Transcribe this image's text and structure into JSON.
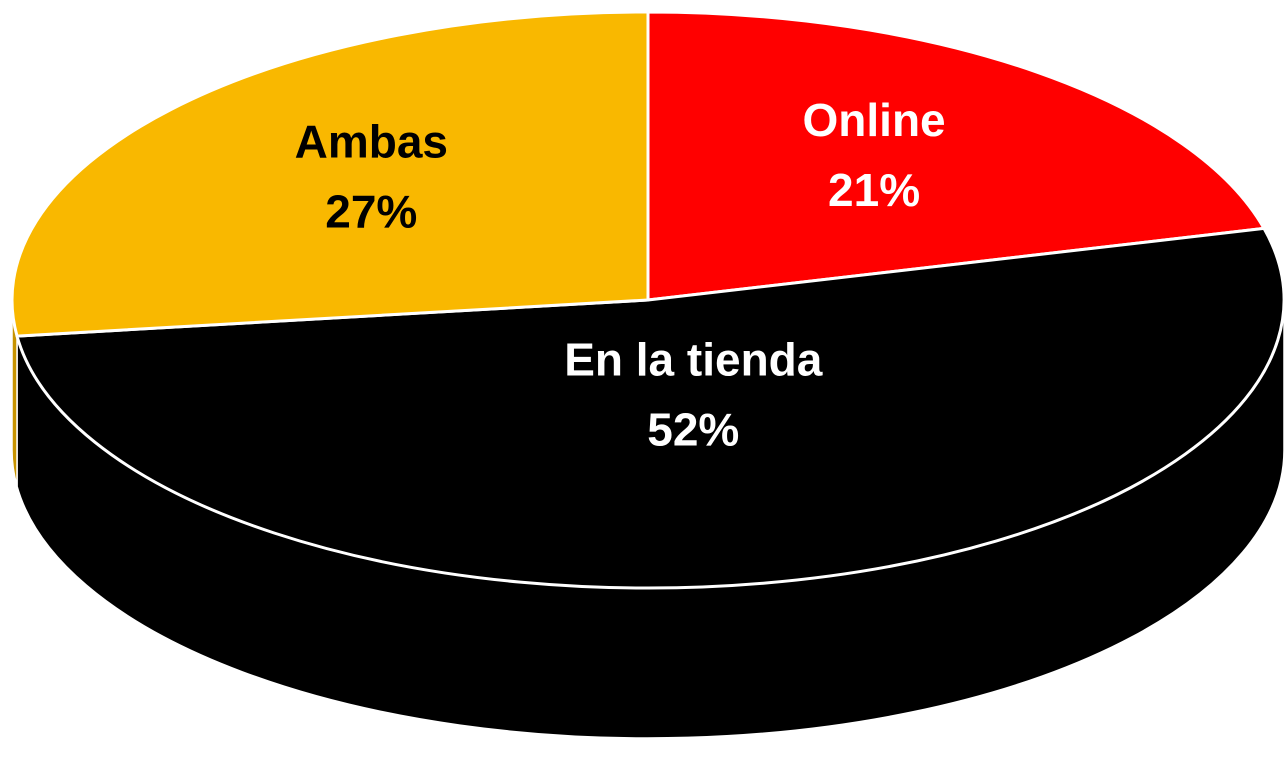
{
  "chart_data": {
    "type": "pie3d",
    "categories": [
      "Online",
      "En la tienda",
      "Ambas"
    ],
    "values": [
      21,
      52,
      27
    ],
    "value_labels": [
      "21%",
      "52%",
      "27%"
    ],
    "colors": [
      "#ff0000",
      "#000000",
      "#f9b800"
    ]
  }
}
